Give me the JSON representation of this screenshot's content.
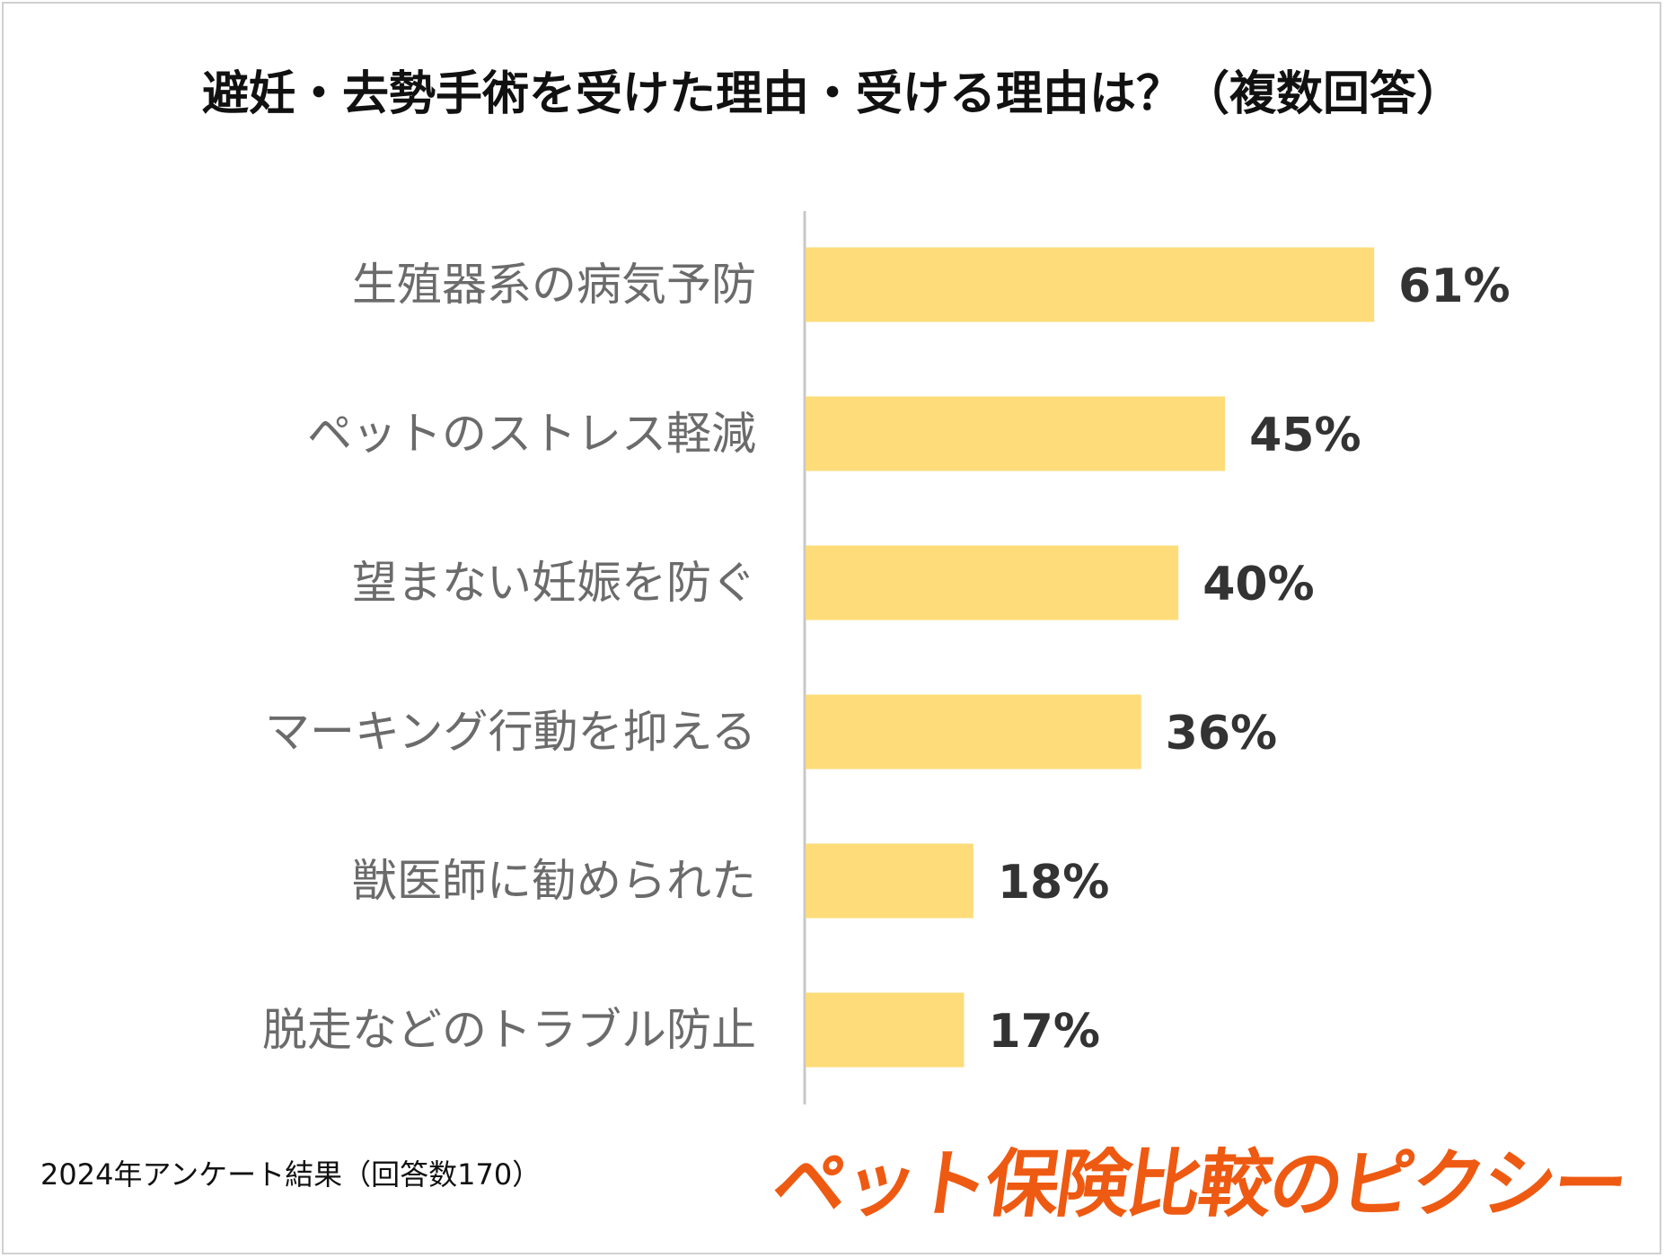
{
  "colors": {
    "bar": "#fddc79",
    "axis": "#c8c8c8",
    "category_text": "#6b6b6b",
    "value_text": "#333333",
    "brand": "#ee5a12"
  },
  "chart_data": {
    "type": "bar",
    "orientation": "horizontal",
    "title": "避妊・去勢手術を受けた理由・受ける理由は？（複数回答）",
    "categories": [
      "生殖器系の病気予防",
      "ペットのストレス軽減",
      "望まない妊娠を防ぐ",
      "マーキング行動を抑える",
      "獣医師に勧められた",
      "脱走などのトラブル防止"
    ],
    "values": [
      61,
      45,
      40,
      36,
      18,
      17
    ],
    "value_labels": [
      "61%",
      "45%",
      "40%",
      "36%",
      "18%",
      "17%"
    ],
    "unit": "%",
    "xlim": [
      0,
      100
    ],
    "grid": false,
    "legend": "none"
  },
  "footnote": "2024年アンケート結果（回答数170）",
  "brand": "ペット保険比較のピクシー"
}
